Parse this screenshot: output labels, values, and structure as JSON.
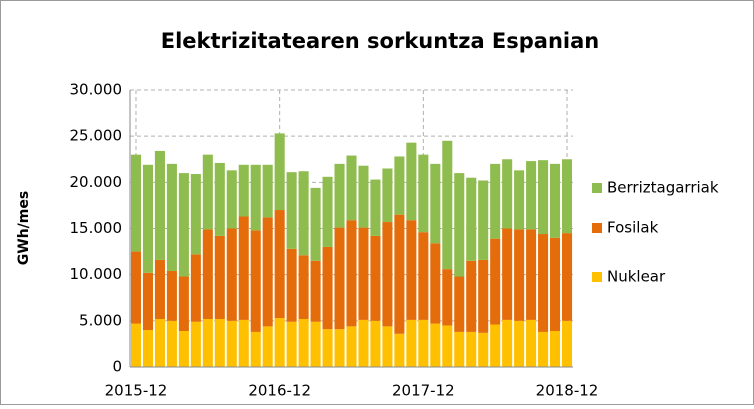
{
  "chart_data": {
    "type": "stacked_bar",
    "title": "Elektrizitatearen sorkuntza Espanian",
    "y_label": "GWh/mes",
    "categories": [
      "2015-12",
      null,
      null,
      null,
      null,
      null,
      null,
      null,
      null,
      null,
      null,
      null,
      "2016-12",
      null,
      null,
      null,
      null,
      null,
      null,
      null,
      null,
      null,
      null,
      null,
      "2017-12",
      null,
      null,
      null,
      null,
      null,
      null,
      null,
      null,
      null,
      null,
      null,
      "2018-12"
    ],
    "series": [
      {
        "name": "Nuklear",
        "color": "#ffc000",
        "values": [
          4700,
          4000,
          5200,
          5000,
          3900,
          4900,
          5200,
          5200,
          5000,
          5100,
          3800,
          4400,
          5300,
          4900,
          5200,
          4900,
          4100,
          4100,
          4400,
          5100,
          5000,
          4400,
          3600,
          5100,
          5100,
          4700,
          4500,
          3800,
          3800,
          3700,
          4600,
          5100,
          5000,
          5100,
          3800,
          3900,
          5000
        ]
      },
      {
        "name": "Fosilak",
        "color": "#e46c0a",
        "values": [
          7800,
          6200,
          6400,
          5400,
          5900,
          7300,
          9700,
          9000,
          10000,
          11200,
          11000,
          11800,
          11700,
          7900,
          6900,
          6600,
          8900,
          11000,
          11500,
          10000,
          9200,
          11300,
          12900,
          10800,
          9500,
          8700,
          6100,
          6000,
          7700,
          7900,
          9300,
          9900,
          9900,
          9800,
          10600,
          10100,
          9500
        ]
      },
      {
        "name": "Berriztagarriak",
        "color": "#8fbc4e",
        "values": [
          10500,
          11700,
          11800,
          11600,
          11200,
          8700,
          8100,
          7900,
          6300,
          5600,
          7100,
          5700,
          8300,
          8300,
          9100,
          7900,
          7600,
          6900,
          7000,
          6700,
          6100,
          5800,
          6300,
          8400,
          8400,
          8600,
          13900,
          11200,
          9000,
          8600,
          8100,
          7500,
          6400,
          7400,
          8000,
          8000,
          8000
        ]
      }
    ],
    "ylim": [
      0,
      30000
    ],
    "yticks": [
      0,
      {
        "value": 5000,
        "label": "5.000"
      },
      {
        "value": 10000,
        "label": "10.000"
      },
      {
        "value": 15000,
        "label": "15.000"
      },
      {
        "value": 20000,
        "label": "20.000"
      },
      {
        "value": 25000,
        "label": "25.000"
      },
      {
        "value": 30000,
        "label": "30.000"
      }
    ],
    "grid": true,
    "legend": "right"
  }
}
